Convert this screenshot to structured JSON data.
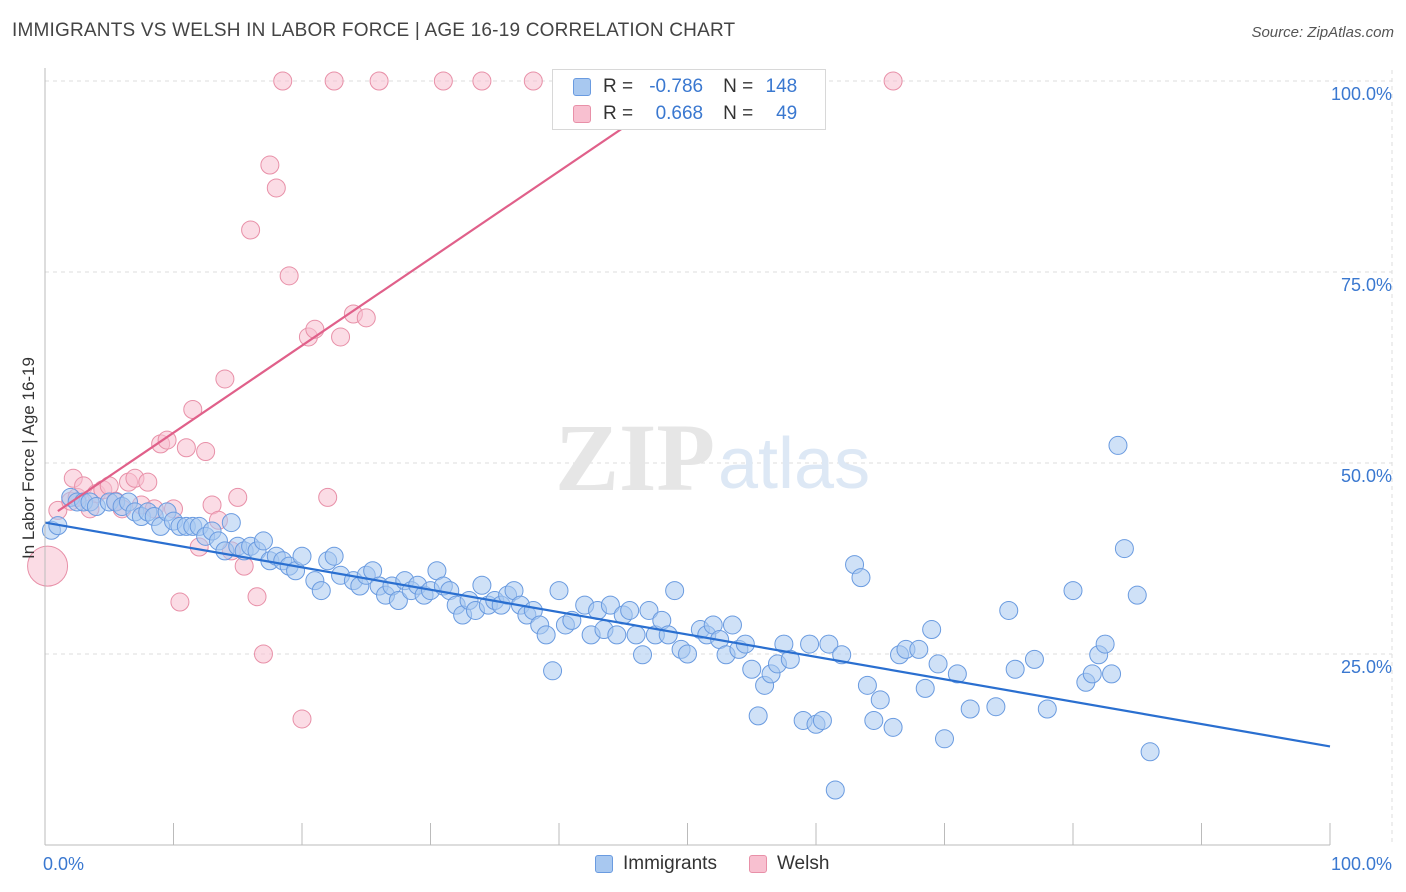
{
  "title": "IMMIGRANTS VS WELSH IN LABOR FORCE | AGE 16-19 CORRELATION CHART",
  "source": "Source: ZipAtlas.com",
  "watermark": {
    "zip": "ZIP",
    "atlas": "atlas"
  },
  "stats": {
    "r_label": "R =",
    "n_label": "N =",
    "immigrants": {
      "r": "-0.786",
      "n": "148",
      "color": "#a8c8f0",
      "border": "#6a9be0"
    },
    "welsh": {
      "r": "0.668",
      "n": "49",
      "color": "#f8c0d0",
      "border": "#e890a8"
    }
  },
  "legend": {
    "immigrants": "Immigrants",
    "welsh": "Welsh"
  },
  "colors": {
    "immigrants_fill": "#a8c8f0",
    "immigrants_stroke": "#6a9be0",
    "immigrants_line": "#2a6fd0",
    "welsh_fill": "#f8c0d0",
    "welsh_stroke": "#e890a8",
    "welsh_line": "#e0608a",
    "axis_text": "#3a78d0",
    "grid": "#dddddd"
  },
  "chart_data": {
    "type": "scatter",
    "title": "IMMIGRANTS VS WELSH IN LABOR FORCE | AGE 16-19 CORRELATION CHART",
    "xlabel": "",
    "ylabel": "In Labor Force | Age 16-19",
    "xlim": [
      0,
      100
    ],
    "ylim": [
      0,
      105
    ],
    "x_tick_labels": [
      "0.0%",
      "100.0%"
    ],
    "y_ticks": [
      25,
      50,
      75,
      100
    ],
    "y_tick_labels": [
      "25.0%",
      "50.0%",
      "75.0%",
      "100.0%"
    ],
    "grid": true,
    "legend_position": "bottom-center",
    "series": [
      {
        "name": "Immigrants",
        "trend": {
          "x": [
            0,
            100
          ],
          "y": [
            42.2,
            12.9
          ]
        },
        "points": [
          [
            0.5,
            41.2
          ],
          [
            1,
            41.8
          ],
          [
            2,
            45.5
          ],
          [
            2.5,
            44.9
          ],
          [
            3,
            44.9
          ],
          [
            3.5,
            44.9
          ],
          [
            4,
            44.3
          ],
          [
            5,
            44.9
          ],
          [
            5.5,
            44.9
          ],
          [
            6,
            44.3
          ],
          [
            6.5,
            44.9
          ],
          [
            7,
            43.6
          ],
          [
            7.5,
            43.0
          ],
          [
            8,
            43.6
          ],
          [
            8.5,
            43.0
          ],
          [
            9,
            41.7
          ],
          [
            9.5,
            43.6
          ],
          [
            10,
            42.4
          ],
          [
            10.5,
            41.7
          ],
          [
            11,
            41.7
          ],
          [
            11.5,
            41.7
          ],
          [
            12,
            41.7
          ],
          [
            12.5,
            40.4
          ],
          [
            13,
            41.1
          ],
          [
            13.5,
            39.8
          ],
          [
            14,
            38.5
          ],
          [
            14.5,
            42.2
          ],
          [
            15,
            39.1
          ],
          [
            15.5,
            38.5
          ],
          [
            16,
            39.1
          ],
          [
            16.5,
            38.5
          ],
          [
            17,
            39.8
          ],
          [
            17.5,
            37.2
          ],
          [
            18,
            37.8
          ],
          [
            18.5,
            37.2
          ],
          [
            19,
            36.5
          ],
          [
            19.5,
            35.9
          ],
          [
            20,
            37.8
          ],
          [
            21,
            34.6
          ],
          [
            21.5,
            33.3
          ],
          [
            22,
            37.2
          ],
          [
            22.5,
            37.8
          ],
          [
            23,
            35.3
          ],
          [
            24,
            34.6
          ],
          [
            24.5,
            33.9
          ],
          [
            25,
            35.3
          ],
          [
            25.5,
            35.9
          ],
          [
            26,
            33.9
          ],
          [
            26.5,
            32.7
          ],
          [
            27,
            33.9
          ],
          [
            27.5,
            32.0
          ],
          [
            28,
            34.6
          ],
          [
            28.5,
            33.3
          ],
          [
            29,
            34.0
          ],
          [
            29.5,
            32.7
          ],
          [
            30,
            33.3
          ],
          [
            30.5,
            35.9
          ],
          [
            31,
            33.9
          ],
          [
            31.5,
            33.3
          ],
          [
            32,
            31.4
          ],
          [
            32.5,
            30.1
          ],
          [
            33,
            32.0
          ],
          [
            33.5,
            30.7
          ],
          [
            34,
            34.0
          ],
          [
            34.5,
            31.4
          ],
          [
            35,
            32.0
          ],
          [
            35.5,
            31.4
          ],
          [
            36,
            32.7
          ],
          [
            36.5,
            33.3
          ],
          [
            37,
            31.4
          ],
          [
            37.5,
            30.1
          ],
          [
            38,
            30.7
          ],
          [
            38.5,
            28.8
          ],
          [
            39,
            27.5
          ],
          [
            39.5,
            22.8
          ],
          [
            40,
            33.3
          ],
          [
            40.5,
            28.8
          ],
          [
            41,
            29.4
          ],
          [
            42,
            31.4
          ],
          [
            42.5,
            27.5
          ],
          [
            43,
            30.7
          ],
          [
            43.5,
            28.2
          ],
          [
            44,
            31.4
          ],
          [
            44.5,
            27.5
          ],
          [
            45,
            30.1
          ],
          [
            45.5,
            30.7
          ],
          [
            46,
            27.5
          ],
          [
            46.5,
            24.9
          ],
          [
            47,
            30.7
          ],
          [
            47.5,
            27.5
          ],
          [
            48,
            29.4
          ],
          [
            48.5,
            27.5
          ],
          [
            49,
            33.3
          ],
          [
            49.5,
            25.6
          ],
          [
            50,
            25.0
          ],
          [
            51,
            28.2
          ],
          [
            51.5,
            27.5
          ],
          [
            52,
            28.8
          ],
          [
            52.5,
            26.9
          ],
          [
            53,
            24.9
          ],
          [
            53.5,
            28.8
          ],
          [
            54,
            25.6
          ],
          [
            54.5,
            26.3
          ],
          [
            55,
            23.0
          ],
          [
            55.5,
            16.9
          ],
          [
            56,
            20.9
          ],
          [
            56.5,
            22.4
          ],
          [
            57,
            23.7
          ],
          [
            57.5,
            26.3
          ],
          [
            58,
            24.3
          ],
          [
            59,
            16.3
          ],
          [
            59.5,
            26.3
          ],
          [
            60,
            15.8
          ],
          [
            60.5,
            16.3
          ],
          [
            61,
            26.3
          ],
          [
            62,
            24.9
          ],
          [
            63,
            36.7
          ],
          [
            63.5,
            35.0
          ],
          [
            64,
            20.9
          ],
          [
            64.5,
            16.3
          ],
          [
            65,
            19.0
          ],
          [
            66,
            15.4
          ],
          [
            66.5,
            24.9
          ],
          [
            67,
            25.6
          ],
          [
            68,
            25.6
          ],
          [
            68.5,
            20.5
          ],
          [
            69,
            28.2
          ],
          [
            69.5,
            23.7
          ],
          [
            70,
            13.9
          ],
          [
            71,
            22.4
          ],
          [
            72,
            17.8
          ],
          [
            74,
            18.1
          ],
          [
            75,
            30.7
          ],
          [
            75.5,
            23.0
          ],
          [
            77,
            24.3
          ],
          [
            78,
            17.8
          ],
          [
            80,
            33.3
          ],
          [
            81,
            21.3
          ],
          [
            81.5,
            22.4
          ],
          [
            82,
            24.9
          ],
          [
            82.5,
            26.3
          ],
          [
            83,
            22.4
          ],
          [
            83.5,
            52.3
          ],
          [
            84,
            38.8
          ],
          [
            85,
            32.7
          ],
          [
            86,
            12.2
          ],
          [
            61.5,
            7.2
          ]
        ]
      },
      {
        "name": "Welsh",
        "trend": {
          "x": [
            1,
            48
          ],
          "y": [
            43.7,
            97.3
          ]
        },
        "points": [
          [
            0.2,
            36.5
          ],
          [
            1,
            43.8
          ],
          [
            2,
            45.0
          ],
          [
            2.2,
            48.0
          ],
          [
            2.5,
            45.5
          ],
          [
            3,
            47.0
          ],
          [
            3.5,
            44.0
          ],
          [
            4,
            46.0
          ],
          [
            4.5,
            46.5
          ],
          [
            5,
            47.0
          ],
          [
            5.5,
            45.0
          ],
          [
            6,
            44.0
          ],
          [
            6.5,
            47.5
          ],
          [
            7,
            48.0
          ],
          [
            7.5,
            44.5
          ],
          [
            8,
            47.5
          ],
          [
            8.5,
            44.0
          ],
          [
            9,
            52.5
          ],
          [
            9.5,
            53.0
          ],
          [
            10,
            44.0
          ],
          [
            10.5,
            31.8
          ],
          [
            11,
            52.0
          ],
          [
            11.5,
            57.0
          ],
          [
            12,
            39.0
          ],
          [
            12.5,
            51.5
          ],
          [
            13,
            44.5
          ],
          [
            13.5,
            42.5
          ],
          [
            14,
            61.0
          ],
          [
            14.5,
            38.5
          ],
          [
            15,
            45.5
          ],
          [
            15.5,
            36.5
          ],
          [
            16,
            80.5
          ],
          [
            16.5,
            32.5
          ],
          [
            17,
            25.0
          ],
          [
            17.5,
            89.0
          ],
          [
            18,
            86.0
          ],
          [
            19,
            74.5
          ],
          [
            20,
            16.5
          ],
          [
            20.5,
            66.5
          ],
          [
            21,
            67.5
          ],
          [
            22,
            45.5
          ],
          [
            23,
            66.5
          ],
          [
            24,
            69.5
          ],
          [
            25,
            69.0
          ],
          [
            42,
            100
          ],
          [
            18.5,
            100
          ],
          [
            22.5,
            100
          ],
          [
            26,
            100
          ],
          [
            31,
            100
          ],
          [
            34,
            100
          ],
          [
            38,
            100
          ],
          [
            59,
            100
          ],
          [
            66,
            100
          ]
        ]
      }
    ]
  }
}
